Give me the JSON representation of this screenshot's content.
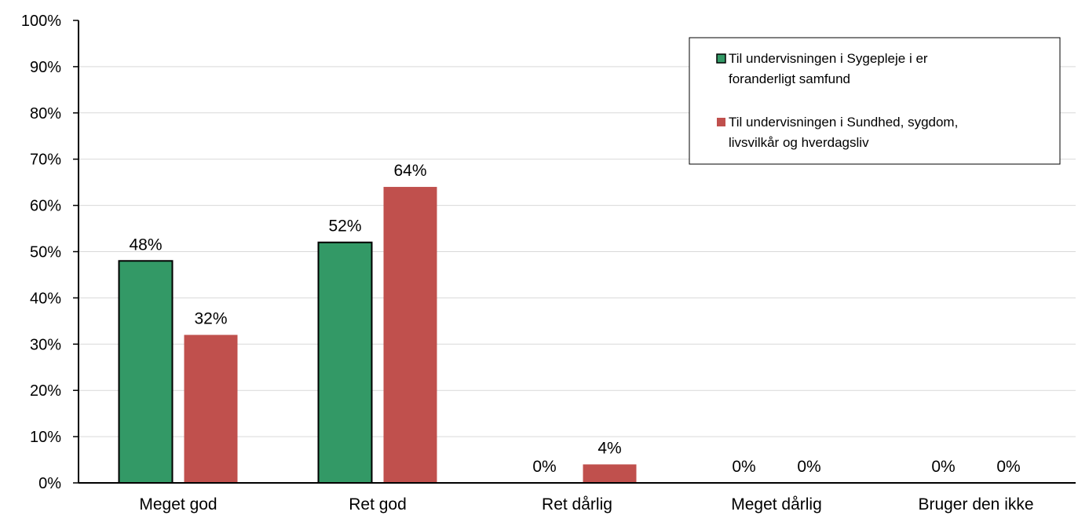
{
  "chart_data": {
    "type": "bar",
    "categories": [
      "Meget god",
      "Ret god",
      "Ret dårlig",
      "Meget dårlig",
      "Bruger den ikke"
    ],
    "series": [
      {
        "name": "Til undervisningen i Sygepleje i er foranderligt samfund",
        "name_lines": [
          "Til undervisningen i Sygepleje i er",
          "foranderligt samfund"
        ],
        "values": [
          48,
          52,
          0,
          0,
          0
        ],
        "labels": [
          "48%",
          "52%",
          "0%",
          "0%",
          "0%"
        ],
        "color": "#339966"
      },
      {
        "name": "Til undervisningen i Sundhed, sygdom, livsvilkår og hverdagsliv",
        "name_lines": [
          "Til undervisningen i Sundhed, sygdom,",
          "livsvilkår og hverdagsliv"
        ],
        "values": [
          32,
          64,
          4,
          0,
          0
        ],
        "labels": [
          "32%",
          "64%",
          "4%",
          "0%",
          "0%"
        ],
        "color": "#C0504D"
      }
    ],
    "yticks": [
      "0%",
      "10%",
      "20%",
      "30%",
      "40%",
      "50%",
      "60%",
      "70%",
      "80%",
      "90%",
      "100%"
    ],
    "ylim": [
      0,
      100
    ],
    "grid": true,
    "legend_position": "top-right"
  }
}
